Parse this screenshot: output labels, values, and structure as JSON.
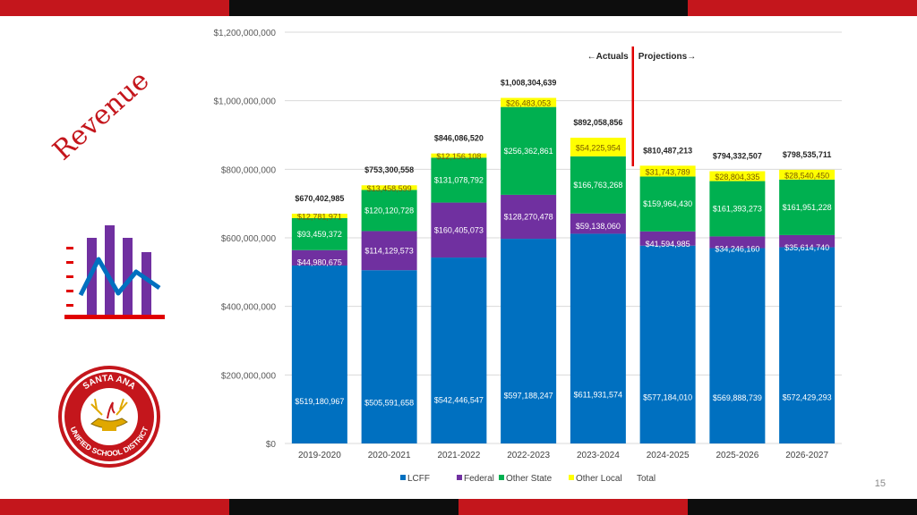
{
  "slide": {
    "title": "Revenue",
    "page_number": "15",
    "colors": {
      "red": "#c4161c",
      "black": "#0d0d0d"
    }
  },
  "logo": {
    "text_top": "SANTA ANA",
    "text_bottom": "UNIFIED SCHOOL DISTRICT"
  },
  "chart_data": {
    "type": "bar",
    "stacked": true,
    "title": "",
    "xlabel": "",
    "ylabel": "",
    "ylim": [
      0,
      1200000000
    ],
    "yticks": [
      0,
      200000000,
      400000000,
      600000000,
      800000000,
      1000000000,
      1200000000
    ],
    "ytick_labels": [
      "$0",
      "$200,000,000",
      "$400,000,000",
      "$600,000,000",
      "$800,000,000",
      "$1,000,000,000",
      "$1,200,000,000"
    ],
    "categories": [
      "2019-2020",
      "2020-2021",
      "2021-2022",
      "2022-2023",
      "2023-2024",
      "2024-2025",
      "2025-2026",
      "2026-2027"
    ],
    "series": [
      {
        "name": "LCFF",
        "color": "#0070c0",
        "values": [
          519180967,
          505591658,
          542446547,
          597188247,
          611931574,
          577184010,
          569888739,
          572429293
        ],
        "labels": [
          "$519,180,967",
          "$505,591,658",
          "$542,446,547",
          "$597,188,247",
          "$611,931,574",
          "$577,184,010",
          "$569,888,739",
          "$572,429,293"
        ]
      },
      {
        "name": "Federal",
        "color": "#7030a0",
        "values": [
          44980675,
          114129573,
          160405073,
          128270478,
          59138060,
          41594985,
          34246160,
          35614740
        ],
        "labels": [
          "$44,980,675",
          "$114,129,573",
          "$160,405,073",
          "$128,270,478",
          "$59,138,060",
          "$41,594,985",
          "$34,246,160",
          "$35,614,740"
        ]
      },
      {
        "name": "Other State",
        "color": "#00b050",
        "values": [
          93459372,
          120120728,
          131078792,
          256362861,
          166763268,
          159964430,
          161393273,
          161951228
        ],
        "labels": [
          "$93,459,372",
          "$120,120,728",
          "$131,078,792",
          "$256,362,861",
          "$166,763,268",
          "$159,964,430",
          "$161,393,273",
          "$161,951,228"
        ]
      },
      {
        "name": "Other Local",
        "color": "#ffff00",
        "values": [
          12781971,
          13458599,
          12156108,
          26483053,
          54225954,
          31743789,
          28804335,
          28540450
        ],
        "labels": [
          "$12,781,971",
          "$13,458,599",
          "$12,156,108",
          "$26,483,053",
          "$54,225,954",
          "$31,743,789",
          "$28,804,335",
          "$28,540,450"
        ]
      }
    ],
    "totals": {
      "name": "Total",
      "values": [
        670402985,
        753300558,
        846086520,
        1008304639,
        892058856,
        810487213,
        794332507,
        798535711
      ],
      "labels": [
        "$670,402,985",
        "$753,300,558",
        "$846,086,520",
        "$1,008,304,639",
        "$892,058,856",
        "$810,487,213",
        "$794,332,507",
        "$798,535,711"
      ]
    },
    "legend": [
      "LCFF",
      "Federal",
      "Other State",
      "Other Local",
      "Total"
    ],
    "legend_position": "bottom",
    "grid": true,
    "annotation": {
      "left": "Actuals",
      "right": "Projections",
      "between": [
        "2023-2024",
        "2024-2025"
      ],
      "color": "#e00000"
    }
  }
}
